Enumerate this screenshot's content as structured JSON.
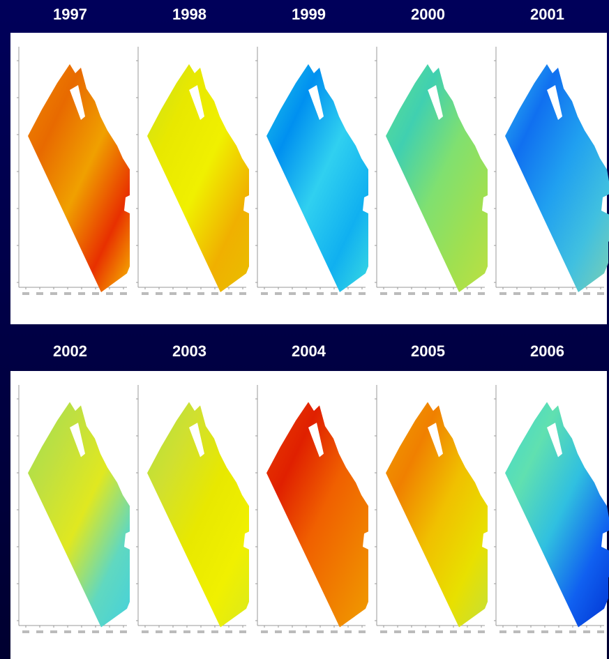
{
  "rows": [
    [
      "1997",
      "1998",
      "1999",
      "2000",
      "2001"
    ],
    [
      "2002",
      "2003",
      "2004",
      "2005",
      "2006"
    ]
  ]
}
